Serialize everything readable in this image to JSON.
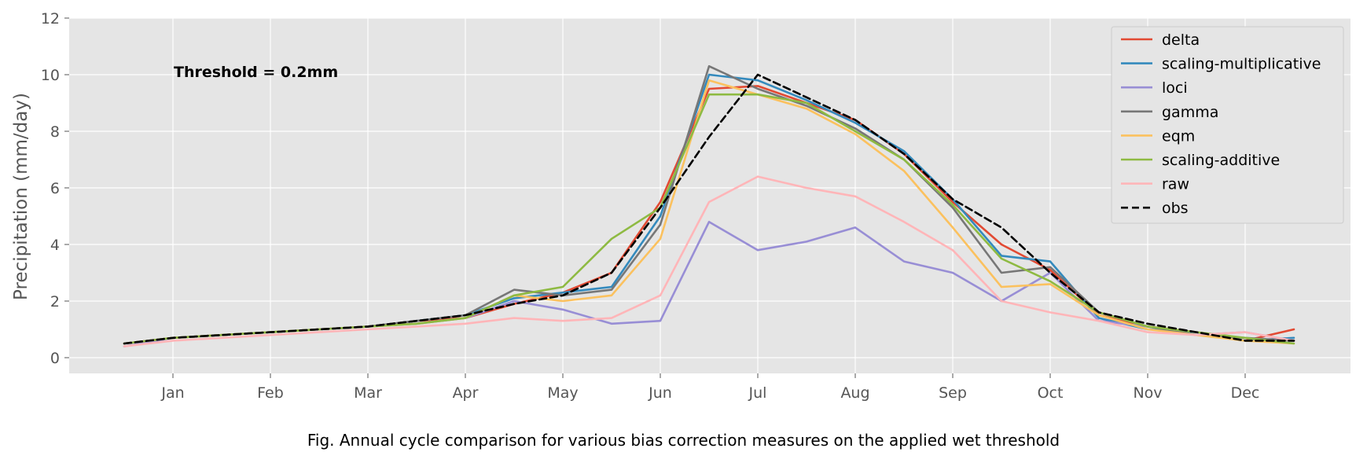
{
  "chart_data": {
    "type": "line",
    "ylabel": "Precipitation (mm/day)",
    "xlabel": "",
    "ylim": [
      0,
      12
    ],
    "yticks": [
      "0",
      "2",
      "4",
      "6",
      "8",
      "10",
      "12"
    ],
    "x_tick_labels": [
      "Jan",
      "Feb",
      "Mar",
      "Apr",
      "May",
      "Jun",
      "Jul",
      "Aug",
      "Sep",
      "Oct",
      "Nov",
      "Dec"
    ],
    "annotation": "Threshold = 0.2mm",
    "grid": true,
    "legend_position": "top-right",
    "x_unit": "month",
    "x": [
      0.5,
      1.0,
      1.5,
      2.0,
      2.5,
      3.0,
      3.5,
      4.0,
      4.5,
      5.0,
      5.5,
      6.0,
      6.5,
      7.0,
      7.5,
      8.0,
      8.5,
      9.0,
      9.5,
      10.0,
      10.5,
      11.0,
      11.5,
      12.0,
      12.5
    ],
    "series": [
      {
        "name": "delta",
        "color": "#E24A33",
        "dash": false,
        "values": [
          0.5,
          0.7,
          0.8,
          0.9,
          1.0,
          1.1,
          1.3,
          1.4,
          1.9,
          2.3,
          3.0,
          5.5,
          9.5,
          9.6,
          9.0,
          8.4,
          7.2,
          5.5,
          4.0,
          3.1,
          1.5,
          1.1,
          0.9,
          0.6,
          1.0
        ]
      },
      {
        "name": "scaling-multiplicative",
        "color": "#348ABD",
        "dash": false,
        "values": [
          0.5,
          0.7,
          0.8,
          0.9,
          1.0,
          1.1,
          1.3,
          1.5,
          2.1,
          2.3,
          2.5,
          5.0,
          10.0,
          9.8,
          9.1,
          8.3,
          7.3,
          5.6,
          3.6,
          3.4,
          1.4,
          1.0,
          0.9,
          0.6,
          0.7
        ]
      },
      {
        "name": "loci",
        "color": "#988ED5",
        "dash": false,
        "values": [
          0.4,
          0.7,
          0.8,
          0.9,
          1.0,
          1.1,
          1.2,
          1.4,
          2.0,
          1.7,
          1.2,
          1.3,
          4.8,
          3.8,
          4.1,
          4.6,
          3.4,
          3.0,
          2.0,
          3.0,
          1.3,
          1.1,
          0.8,
          0.9,
          0.6
        ]
      },
      {
        "name": "gamma",
        "color": "#777777",
        "dash": false,
        "values": [
          0.5,
          0.7,
          0.8,
          0.9,
          1.0,
          1.1,
          1.3,
          1.5,
          2.4,
          2.2,
          2.4,
          4.7,
          10.3,
          9.5,
          8.9,
          8.1,
          7.0,
          5.3,
          3.0,
          3.2,
          1.6,
          1.1,
          0.8,
          0.7,
          0.6
        ]
      },
      {
        "name": "eqm",
        "color": "#FBC15E",
        "dash": false,
        "values": [
          0.5,
          0.7,
          0.8,
          0.9,
          1.0,
          1.1,
          1.2,
          1.4,
          2.2,
          2.0,
          2.2,
          4.2,
          9.8,
          9.3,
          8.8,
          7.9,
          6.6,
          4.6,
          2.5,
          2.6,
          1.5,
          1.0,
          0.8,
          0.6,
          0.5
        ]
      },
      {
        "name": "scaling-additive",
        "color": "#8EBA42",
        "dash": false,
        "values": [
          0.5,
          0.7,
          0.8,
          0.9,
          1.0,
          1.1,
          1.2,
          1.4,
          2.2,
          2.5,
          4.2,
          5.3,
          9.3,
          9.3,
          9.0,
          8.0,
          7.0,
          5.4,
          3.5,
          2.7,
          1.6,
          1.1,
          0.9,
          0.7,
          0.5
        ]
      },
      {
        "name": "raw",
        "color": "#FFB5B8",
        "dash": false,
        "values": [
          0.4,
          0.6,
          0.7,
          0.8,
          0.9,
          1.0,
          1.1,
          1.2,
          1.4,
          1.3,
          1.4,
          2.2,
          5.5,
          6.4,
          6.0,
          5.7,
          4.8,
          3.8,
          2.0,
          1.6,
          1.3,
          0.9,
          0.8,
          0.9,
          0.6
        ]
      },
      {
        "name": "obs",
        "color": "#000000",
        "dash": true,
        "values": [
          0.5,
          0.7,
          0.8,
          0.9,
          1.0,
          1.1,
          1.3,
          1.5,
          1.9,
          2.2,
          3.0,
          5.3,
          7.8,
          10.0,
          9.2,
          8.4,
          7.2,
          5.6,
          4.6,
          3.0,
          1.6,
          1.2,
          0.9,
          0.6,
          0.6
        ]
      }
    ]
  },
  "caption": "Fig. Annual cycle comparison for various bias correction measures on the applied wet threshold"
}
